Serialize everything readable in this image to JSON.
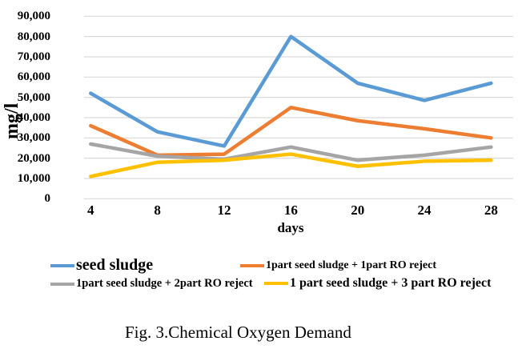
{
  "chart_data": {
    "type": "line",
    "title": "",
    "x": [
      4,
      8,
      12,
      16,
      20,
      24,
      28
    ],
    "xlabel": "days",
    "ylabel": "mg/l",
    "ylim": [
      0,
      90000
    ],
    "ytick_step": 10000,
    "ytick_labels": [
      "0",
      "10,000",
      "20,000",
      "30,000",
      "40,000",
      "50,000",
      "60,000",
      "70,000",
      "80,000",
      "90,000"
    ],
    "grid": true,
    "legend_position": "bottom",
    "series": [
      {
        "name": "seed sludge",
        "color": "#5B9BD5",
        "values": [
          52000,
          33000,
          26000,
          80000,
          57000,
          48500,
          57000
        ]
      },
      {
        "name": "1part seed sludge + 1part RO reject",
        "color": "#ED7D31",
        "values": [
          36000,
          21500,
          22000,
          45000,
          38500,
          34500,
          30000
        ]
      },
      {
        "name": "1part seed sludge + 2part RO reject",
        "color": "#A5A5A5",
        "values": [
          27000,
          21000,
          19500,
          25500,
          19000,
          21500,
          25500
        ]
      },
      {
        "name": "1 part seed sludge + 3 part RO reject",
        "color": "#FFC000",
        "values": [
          11000,
          18000,
          19000,
          22000,
          16000,
          18500,
          19000
        ]
      }
    ]
  },
  "caption": "Fig. 3.Chemical Oxygen Demand",
  "colors": {
    "background": "#ffffff",
    "gridline": "#d9d9d9",
    "text": "#000000",
    "series_blue": "#5B9BD5",
    "series_orange": "#ED7D31",
    "series_gray": "#A5A5A5",
    "series_yellow": "#FFC000"
  }
}
